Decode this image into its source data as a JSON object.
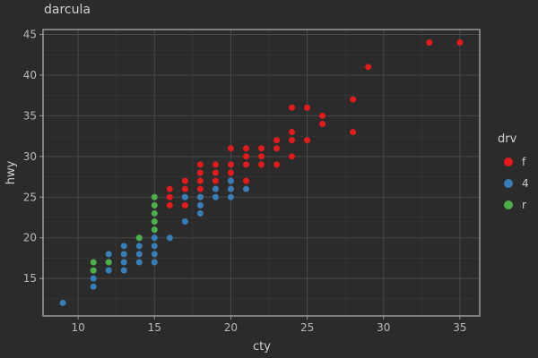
{
  "chart_data": {
    "type": "scatter",
    "title": "darcula",
    "xlabel": "cty",
    "ylabel": "hwy",
    "xlim": [
      7.7,
      36.3
    ],
    "ylim": [
      10.4,
      45.6
    ],
    "xticks": [
      10,
      15,
      20,
      25,
      30,
      35
    ],
    "yticks": [
      15,
      20,
      25,
      30,
      35,
      40,
      45
    ],
    "grid": true,
    "legend": {
      "title": "drv",
      "placement": "right"
    },
    "colors": {
      "background": "#2b2b2b",
      "grid": "#484848",
      "panel_border": "#9a9a9a"
    },
    "series": [
      {
        "name": "f",
        "color": "#e41a1c",
        "points": [
          [
            16,
            24
          ],
          [
            16,
            25
          ],
          [
            16,
            26
          ],
          [
            17,
            24
          ],
          [
            17,
            26
          ],
          [
            17,
            27
          ],
          [
            18,
            25
          ],
          [
            18,
            26
          ],
          [
            18,
            27
          ],
          [
            18,
            28
          ],
          [
            18,
            29
          ],
          [
            19,
            26
          ],
          [
            19,
            27
          ],
          [
            19,
            28
          ],
          [
            19,
            29
          ],
          [
            20,
            26
          ],
          [
            20,
            27
          ],
          [
            20,
            28
          ],
          [
            20,
            29
          ],
          [
            20,
            31
          ],
          [
            21,
            27
          ],
          [
            21,
            29
          ],
          [
            21,
            30
          ],
          [
            21,
            31
          ],
          [
            22,
            29
          ],
          [
            22,
            30
          ],
          [
            22,
            31
          ],
          [
            23,
            29
          ],
          [
            23,
            31
          ],
          [
            23,
            32
          ],
          [
            24,
            30
          ],
          [
            24,
            32
          ],
          [
            24,
            33
          ],
          [
            24,
            36
          ],
          [
            25,
            32
          ],
          [
            25,
            36
          ],
          [
            26,
            34
          ],
          [
            26,
            35
          ],
          [
            28,
            33
          ],
          [
            28,
            37
          ],
          [
            29,
            41
          ],
          [
            33,
            44
          ],
          [
            35,
            44
          ]
        ]
      },
      {
        "name": "4",
        "color": "#377eb8",
        "points": [
          [
            9,
            12
          ],
          [
            11,
            14
          ],
          [
            11,
            15
          ],
          [
            12,
            16
          ],
          [
            12,
            17
          ],
          [
            12,
            18
          ],
          [
            13,
            16
          ],
          [
            13,
            17
          ],
          [
            13,
            18
          ],
          [
            13,
            19
          ],
          [
            14,
            17
          ],
          [
            14,
            18
          ],
          [
            14,
            19
          ],
          [
            14,
            20
          ],
          [
            15,
            17
          ],
          [
            15,
            18
          ],
          [
            15,
            19
          ],
          [
            15,
            20
          ],
          [
            16,
            20
          ],
          [
            17,
            22
          ],
          [
            17,
            25
          ],
          [
            18,
            23
          ],
          [
            18,
            24
          ],
          [
            18,
            25
          ],
          [
            19,
            25
          ],
          [
            19,
            26
          ],
          [
            20,
            25
          ],
          [
            20,
            26
          ],
          [
            20,
            27
          ],
          [
            21,
            26
          ]
        ]
      },
      {
        "name": "r",
        "color": "#4daf4a",
        "points": [
          [
            11,
            16
          ],
          [
            11,
            17
          ],
          [
            12,
            17
          ],
          [
            14,
            20
          ],
          [
            15,
            21
          ],
          [
            15,
            22
          ],
          [
            15,
            23
          ],
          [
            15,
            24
          ],
          [
            15,
            25
          ]
        ]
      }
    ]
  }
}
